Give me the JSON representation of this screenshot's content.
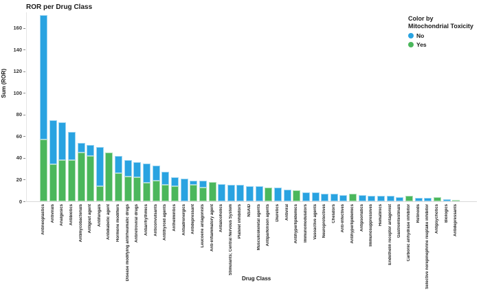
{
  "title": "ROR per Drug Class",
  "legend": {
    "heading_line1": "Color by",
    "heading_line2": "Mitochondrial Toxicity",
    "items": [
      {
        "label": "No",
        "color": "#29A3E1"
      },
      {
        "label": "Yes",
        "color": "#4BB75C"
      }
    ]
  },
  "chart_data": {
    "type": "bar",
    "stacked": true,
    "title": "ROR per Drug Class",
    "xlabel": "Drug Class",
    "ylabel": "Sum (ROR)",
    "ylim": [
      0,
      175
    ],
    "yticks": [
      0,
      20,
      40,
      60,
      80,
      100,
      120,
      140,
      160
    ],
    "grid": false,
    "legend_position": "top-right",
    "legend_title": "Color by Mitochondrial Toxicity",
    "categories": [
      "Antineoplastics",
      "Antivirals",
      "Analgesics",
      "Antibiotics",
      "Antimycobacterials",
      "Antigout agent",
      "Antifungals",
      "Antidiabetic agent",
      "Hormone modifiers",
      "Disease modifying antirheumatic drugs",
      "Antiretroviral drugs",
      "Antiarrhythmics",
      "Anticonvulsants",
      "Antithyroid agents",
      "Anthelmintics",
      "Antiadrenergics",
      "Antidepressant",
      "Leucoene antagonists",
      "Anti-inflammatory agent",
      "Antialcoholics",
      "Stimulants; Central Nervous System",
      "Platelet inhibitors",
      "NSAID",
      "Musculoskeletal agents",
      "Antiparkinson agents",
      "Diuretics",
      "Antiviral",
      "Antihyperlipidemics",
      "Immunomodulators",
      "Vasoactive agents",
      "Neuroprotectives",
      "Chelators",
      "Anti-infectives",
      "Antihyperlipidemics",
      "Antipsoriatics",
      "Immunosuppressives",
      "Hematinics",
      "Endothelin receptor antagonist",
      "Gastrointestinals",
      "Carbonic anhydrase inhibitor",
      "Retinoids",
      "Selective norepinephrine reuptake inhibitor",
      "Antipsychotics",
      "Biologics",
      "Antidepressants"
    ],
    "series": [
      {
        "name": "Yes",
        "color": "#4BB75C",
        "values": [
          57,
          34,
          38,
          38,
          45,
          42,
          14,
          45,
          26,
          23,
          22,
          17,
          19,
          15,
          14,
          0,
          15,
          13,
          18,
          0,
          0,
          0,
          0,
          0,
          13,
          0,
          0,
          10,
          0,
          0,
          0,
          0,
          0,
          7,
          0,
          0,
          0,
          0,
          0,
          5,
          0,
          0,
          4,
          0,
          1.5
        ]
      },
      {
        "name": "No",
        "color": "#29A3E1",
        "values": [
          115,
          41,
          35,
          26,
          9,
          10,
          36,
          0,
          16,
          15,
          14,
          18,
          14,
          12,
          8,
          21,
          4,
          6,
          0,
          16,
          15,
          15,
          14,
          14,
          0,
          13,
          11,
          0,
          8,
          8,
          7,
          7,
          6,
          0,
          6,
          5,
          5,
          5,
          4,
          0,
          3,
          3,
          0,
          2,
          0
        ]
      }
    ]
  }
}
